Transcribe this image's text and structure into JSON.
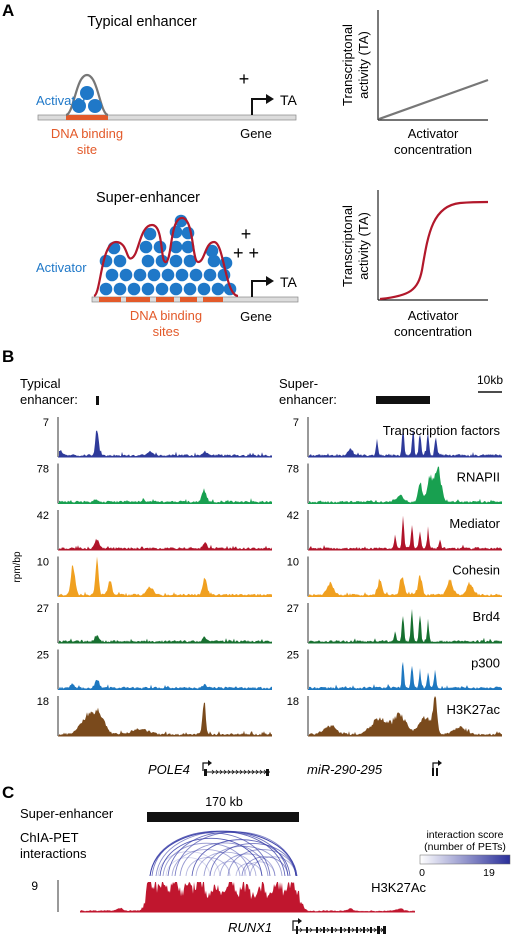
{
  "panelA": {
    "letter": "A",
    "typical": {
      "title": "Typical enhancer",
      "activator_label": "Activator",
      "binding_label_line1": "DNA binding",
      "binding_label_line2": "site",
      "plus": "+",
      "ta_label": "TA",
      "gene_label": "Gene",
      "graph": {
        "ylabel_line1": "Transcriptonal",
        "ylabel_line2": "activity (TA)",
        "xlabel_line1": "Activator",
        "xlabel_line2": "concentration",
        "curve": "linear"
      }
    },
    "super": {
      "title": "Super-enhancer",
      "activator_label": "Activator",
      "binding_label_line1": "DNA binding",
      "binding_label_line2": "sites",
      "plus_top": "+",
      "plus_bottom": "+ +",
      "ta_label": "TA",
      "gene_label": "Gene",
      "graph": {
        "ylabel_line1": "Transcriptonal",
        "ylabel_line2": "activity (TA)",
        "xlabel_line1": "Activator",
        "xlabel_line2": "concentration",
        "curve": "sigmoidal"
      }
    },
    "colors": {
      "activator": "#1f78c8",
      "binding_site": "#e35a2a",
      "super_outline": "#b2182b",
      "typical_outline": "#777777"
    }
  },
  "panelB": {
    "letter": "B",
    "left_header_line1": "Typical",
    "left_header_line2": "enhancer:",
    "right_header_line1": "Super-",
    "right_header_line2": "enhancer:",
    "scale_label": "10kb",
    "yaxis_unit": "rpm/bp",
    "tracks": [
      {
        "name": "Transcription factors",
        "max": "7",
        "color": "#2e3a9a"
      },
      {
        "name": "RNAPII",
        "max": "78",
        "color": "#18a050"
      },
      {
        "name": "Mediator",
        "max": "42",
        "color": "#b0142a"
      },
      {
        "name": "Cohesin",
        "max": "10",
        "color": "#f0a020"
      },
      {
        "name": "Brd4",
        "max": "27",
        "color": "#177030"
      },
      {
        "name": "p300",
        "max": "25",
        "color": "#1e78c0"
      },
      {
        "name": "H3K27ac",
        "max": "18",
        "color": "#7a4a1c"
      }
    ],
    "left_gene": "POLE4",
    "right_gene": "miR-290-295"
  },
  "panelC": {
    "letter": "C",
    "super_enhancer_label": "Super-enhancer",
    "size_label": "170 kb",
    "chia_line1": "ChIA-PET",
    "chia_line2": "interactions",
    "legend_line1": "interaction score",
    "legend_line2": "(number of PETs)",
    "legend_min": "0",
    "legend_max": "19",
    "track_max": "9",
    "track_name": "H3K27Ac",
    "gene": "RUNX1",
    "arc_color": "#3a3fa8",
    "track_color": "#c0162e"
  }
}
